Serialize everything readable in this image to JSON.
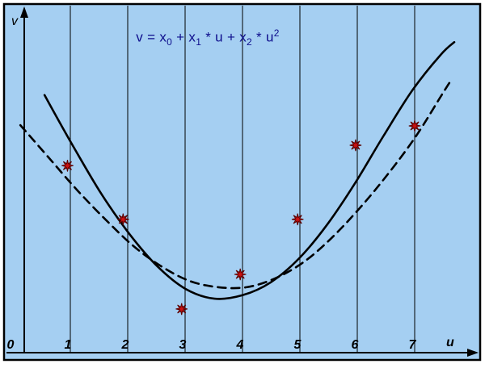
{
  "figure": {
    "kind": "quadratic-least-squares-fit-plot"
  },
  "chart_data": {
    "type": "scatter",
    "title_plain": "v = x0 + x1 * u + x2 * u2",
    "title_segments": [
      {
        "text": "v = x",
        "script": "normal"
      },
      {
        "text": "0",
        "script": "sub"
      },
      {
        "text": " + x",
        "script": "normal"
      },
      {
        "text": "1",
        "script": "sub"
      },
      {
        "text": " * u + x",
        "script": "normal"
      },
      {
        "text": "2",
        "script": "sub"
      },
      {
        "text": " * u",
        "script": "normal"
      },
      {
        "text": "2",
        "script": "sup"
      }
    ],
    "xlabel": "u",
    "ylabel": "v",
    "x_ticks": [
      "0",
      "1",
      "2",
      "3",
      "4",
      "5",
      "6",
      "7"
    ],
    "x_tick_positions": [
      0,
      1,
      2,
      3,
      4,
      5,
      6,
      7
    ],
    "gridlines_u": [
      1,
      2,
      3,
      4,
      5,
      6,
      7
    ],
    "axes": {
      "u_min": 0,
      "u_max": 8.1,
      "v_min": 0,
      "v_max": 10,
      "v_axis_numeric_labels": false,
      "grid": "vertical-only",
      "legend": "none"
    },
    "points": [
      [
        0.95,
        5.4
      ],
      [
        1.92,
        3.85
      ],
      [
        2.94,
        1.26
      ],
      [
        3.96,
        2.26
      ],
      [
        4.96,
        3.85
      ],
      [
        5.97,
        5.99
      ],
      [
        7.0,
        6.55
      ]
    ],
    "series": [
      {
        "name": "fit-solid",
        "style": "solid",
        "points": [
          [
            0.55,
            7.44
          ],
          [
            1.04,
            5.99
          ],
          [
            1.54,
            4.59
          ],
          [
            2.03,
            3.43
          ],
          [
            2.52,
            2.49
          ],
          [
            3.01,
            1.84
          ],
          [
            3.51,
            1.56
          ],
          [
            4.0,
            1.66
          ],
          [
            4.49,
            2.03
          ],
          [
            4.99,
            2.73
          ],
          [
            5.48,
            3.71
          ],
          [
            5.97,
            4.92
          ],
          [
            6.46,
            6.27
          ],
          [
            6.96,
            7.58
          ],
          [
            7.45,
            8.6
          ],
          [
            7.69,
            8.97
          ]
        ]
      },
      {
        "name": "fit-dashed",
        "style": "dashed",
        "points": [
          [
            0.13,
            6.57
          ],
          [
            0.62,
            5.64
          ],
          [
            1.11,
            4.71
          ],
          [
            1.61,
            3.85
          ],
          [
            2.1,
            3.08
          ],
          [
            2.59,
            2.49
          ],
          [
            3.08,
            2.07
          ],
          [
            3.58,
            1.89
          ],
          [
            4.07,
            1.89
          ],
          [
            4.56,
            2.14
          ],
          [
            5.06,
            2.61
          ],
          [
            5.55,
            3.31
          ],
          [
            6.04,
            4.17
          ],
          [
            6.54,
            5.17
          ],
          [
            7.03,
            6.27
          ],
          [
            7.45,
            7.39
          ],
          [
            7.63,
            7.86
          ]
        ]
      }
    ],
    "colors": {
      "background": "#a5cff2",
      "frame": "#000000",
      "grid": "#000000",
      "curve": "#000000",
      "point_fill": "#cc1111",
      "point_outline": "#5a0000",
      "formula": "#0d0d8c",
      "labels": "#000000"
    }
  }
}
